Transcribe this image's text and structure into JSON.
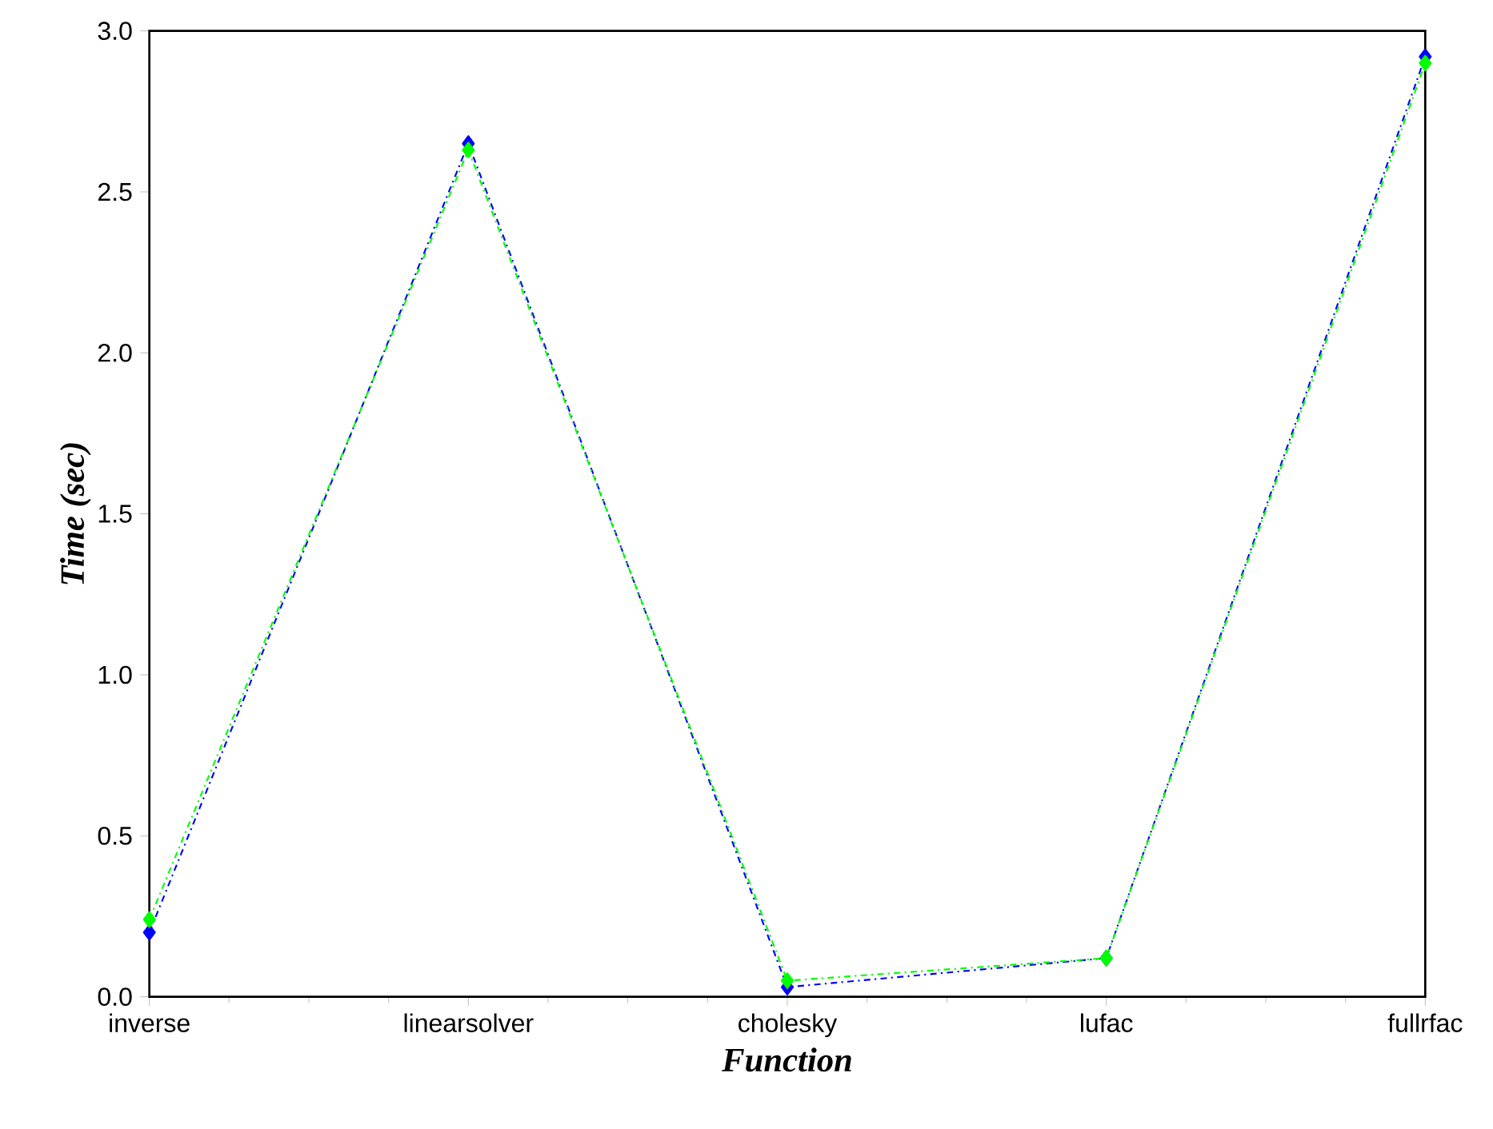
{
  "chart_data": {
    "type": "line",
    "xlabel": "Function",
    "ylabel": "Time (sec)",
    "categories": [
      "inverse",
      "linearsolver",
      "cholesky",
      "lufac",
      "fullrfac"
    ],
    "series": [
      {
        "color": "#0000ff",
        "values": [
          0.2,
          2.65,
          0.03,
          0.12,
          2.92
        ]
      },
      {
        "color": "#00ff00",
        "values": [
          0.24,
          2.63,
          0.05,
          0.12,
          2.9
        ]
      }
    ],
    "ylim": [
      0,
      3
    ],
    "yticks": [
      {
        "value": 0,
        "label": "0.0"
      },
      {
        "value": 0.5,
        "label": "0.5"
      },
      {
        "value": 1,
        "label": "1.0"
      },
      {
        "value": 1.5,
        "label": "1.5"
      },
      {
        "value": 2,
        "label": "2.0"
      },
      {
        "value": 2.5,
        "label": "2.5"
      },
      {
        "value": 3,
        "label": "3.0"
      }
    ],
    "grid": false,
    "marker": "diamond",
    "line_style": "dashed"
  }
}
